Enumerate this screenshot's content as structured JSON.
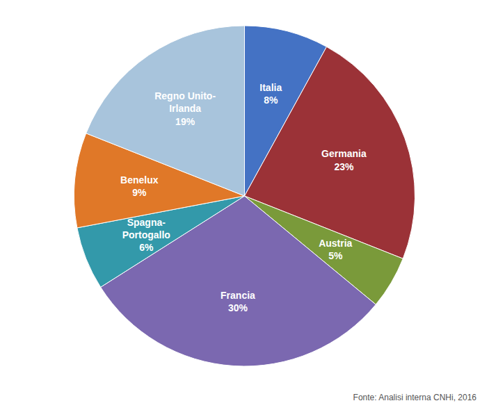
{
  "chart_data": {
    "type": "pie",
    "categories": [
      "Italia",
      "Germania",
      "Austria",
      "Francia",
      "Spagna-\nPortogallo",
      "Benelux",
      "Regno Unito-\nIrlanda"
    ],
    "values": [
      8,
      23,
      5,
      30,
      6,
      9,
      19
    ],
    "value_labels": [
      "8%",
      "23%",
      "5%",
      "30%",
      "6%",
      "9%",
      "19%"
    ],
    "colors": [
      "#4472C4",
      "#9B3237",
      "#7A9A3A",
      "#7B68B0",
      "#3399AA",
      "#E07828",
      "#A8C4DC"
    ],
    "data_labels": true,
    "annotations": [
      "Fonte: Analisi interna CNHi, 2016"
    ]
  }
}
